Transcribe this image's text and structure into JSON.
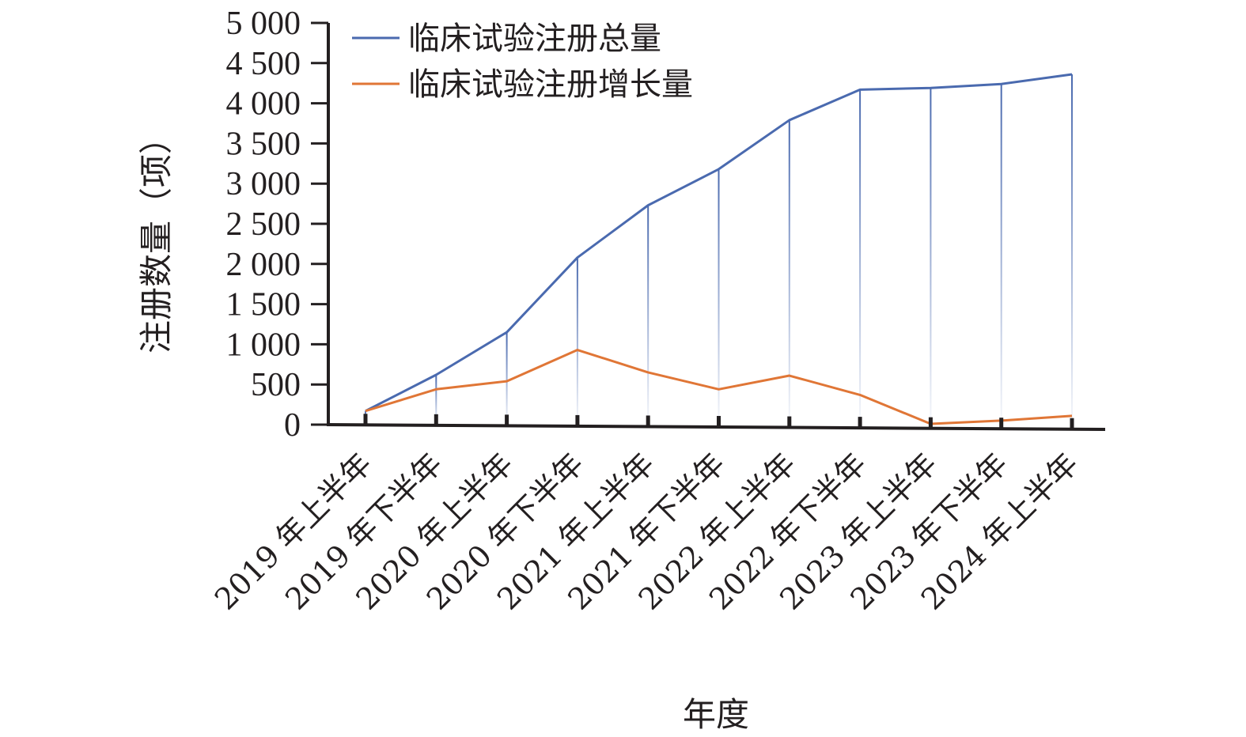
{
  "chart_data": {
    "type": "line",
    "title": "",
    "xlabel": "年度",
    "ylabel": "注册数量（项）",
    "ylim": [
      0,
      5000
    ],
    "yticks": [
      0,
      500,
      1000,
      1500,
      2000,
      2500,
      3000,
      3500,
      4000,
      4500,
      5000
    ],
    "ytick_labels": [
      "0",
      "500",
      "1 000",
      "1 500",
      "2 000",
      "2 500",
      "3 000",
      "3 500",
      "4 000",
      "4 500",
      "5 000"
    ],
    "categories": [
      "2019 年上半年",
      "2019 年下半年",
      "2020 年上半年",
      "2020 年下半年",
      "2021 年上半年",
      "2021 年下半年",
      "2022 年上半年",
      "2022 年下半年",
      "2023 年上半年",
      "2023 年下半年",
      "2024 年上半年"
    ],
    "series": [
      {
        "name": "临床试验注册总量",
        "color": "#4a6aaf",
        "values": [
          170,
          620,
          1150,
          2080,
          2730,
          3180,
          3790,
          4170,
          4190,
          4240,
          4360
        ]
      },
      {
        "name": "临床试验注册增长量",
        "color": "#e07636",
        "values": [
          170,
          440,
          540,
          930,
          650,
          440,
          610,
          370,
          10,
          50,
          110
        ]
      }
    ],
    "drop_lines": true,
    "grid": false,
    "legend_position": "top-left"
  }
}
